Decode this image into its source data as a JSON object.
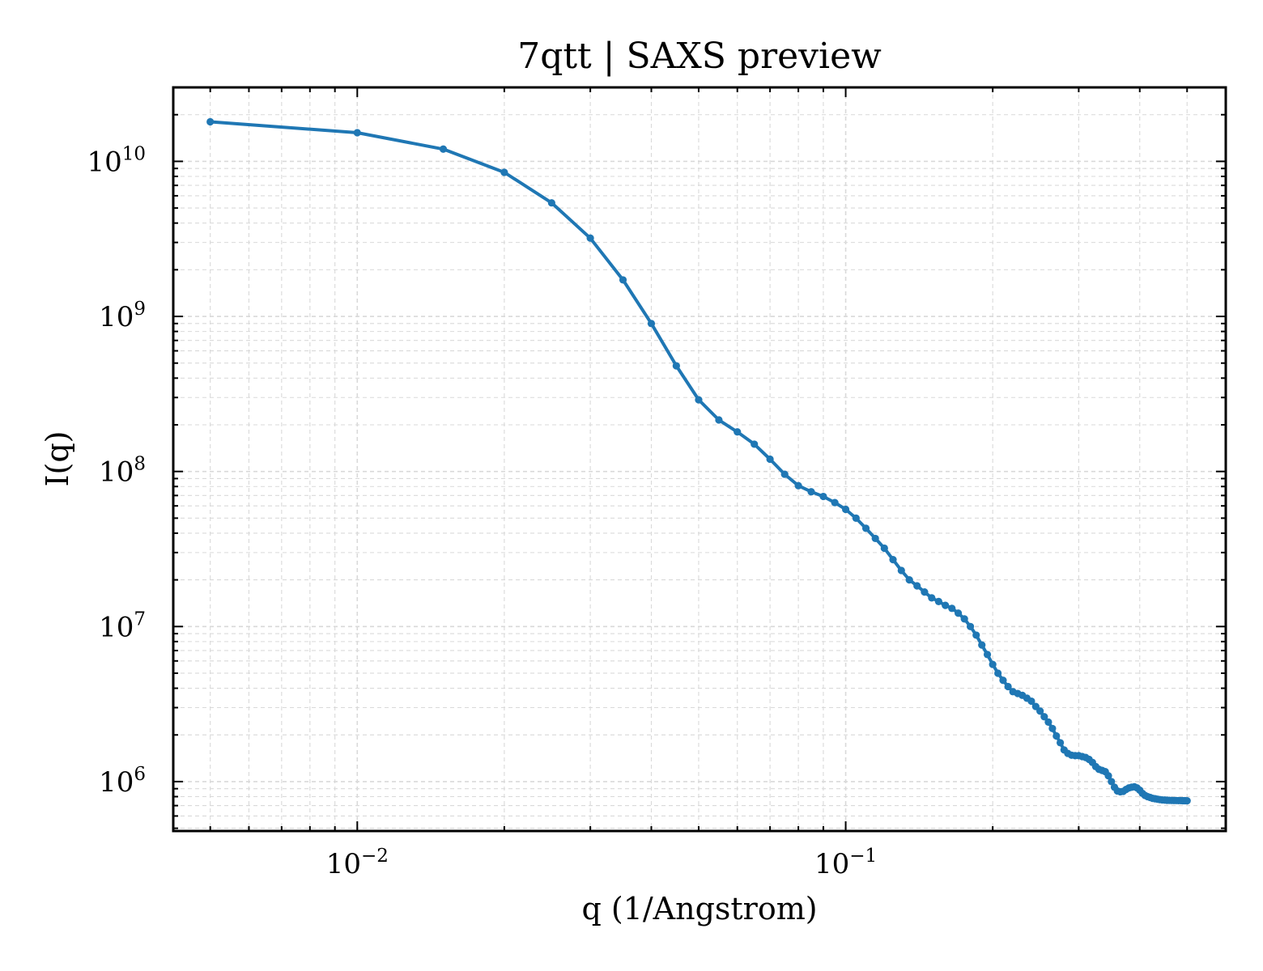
{
  "chart_data": {
    "type": "line",
    "title": "7qtt | SAXS preview",
    "xlabel": "q (1/Angstrom)",
    "ylabel": "I(q)",
    "xscale": "log",
    "yscale": "log",
    "xlim": [
      0.0042,
      0.6
    ],
    "ylim": [
      480000,
      30000000000
    ],
    "grid": true,
    "legend": "none",
    "colors": {
      "series": "#1f77b4",
      "grid": "#d9d9d9",
      "axes": "#000000"
    },
    "x_ticks": [
      {
        "base": "10",
        "exp": "−2",
        "value": 0.01
      },
      {
        "base": "10",
        "exp": "−1",
        "value": 0.1
      }
    ],
    "y_ticks": [
      {
        "base": "10",
        "exp": "6",
        "value": 1000000
      },
      {
        "base": "10",
        "exp": "7",
        "value": 10000000
      },
      {
        "base": "10",
        "exp": "8",
        "value": 100000000
      },
      {
        "base": "10",
        "exp": "9",
        "value": 1000000000
      },
      {
        "base": "10",
        "exp": "10",
        "value": 10000000000
      }
    ],
    "series": [
      {
        "x": [
          0.005,
          0.01,
          0.015,
          0.02,
          0.025,
          0.03,
          0.035,
          0.04,
          0.045,
          0.05,
          0.055,
          0.06,
          0.065,
          0.07,
          0.075,
          0.08,
          0.085,
          0.09,
          0.095,
          0.1,
          0.105,
          0.11,
          0.115,
          0.12,
          0.125,
          0.13,
          0.135,
          0.14,
          0.145,
          0.15,
          0.155,
          0.16,
          0.165,
          0.17,
          0.175,
          0.18,
          0.185,
          0.19,
          0.195,
          0.2,
          0.205,
          0.21,
          0.215,
          0.22,
          0.225,
          0.23,
          0.235,
          0.24,
          0.245,
          0.25,
          0.255,
          0.26,
          0.265,
          0.27,
          0.275,
          0.28,
          0.285,
          0.29,
          0.295,
          0.3,
          0.305,
          0.31,
          0.315,
          0.32,
          0.325,
          0.33,
          0.335,
          0.34,
          0.345,
          0.35,
          0.355,
          0.36,
          0.365,
          0.37,
          0.375,
          0.38,
          0.385,
          0.39,
          0.395,
          0.4,
          0.405,
          0.41,
          0.415,
          0.42,
          0.425,
          0.43,
          0.435,
          0.44,
          0.445,
          0.45,
          0.455,
          0.46,
          0.465,
          0.47,
          0.475,
          0.48,
          0.485,
          0.49,
          0.495,
          0.5
        ],
        "y": [
          18000000000,
          15300000000,
          12000000000,
          8500000000,
          5400000000,
          3200000000,
          1720000000,
          900000000,
          480000000,
          290000000,
          215000000,
          180000000,
          150000000,
          120000000,
          96000000,
          81000000,
          74000000,
          69000000,
          63000000,
          57000000,
          50000000,
          43000000,
          37000000,
          32000000,
          27000000,
          23000000,
          20000000,
          18300000,
          16700000,
          15300000,
          14500000,
          13700000,
          13100000,
          12200000,
          11200000,
          10000000,
          8800000,
          7600000,
          6600000,
          5700000,
          5000000,
          4500000,
          4100000,
          3800000,
          3700000,
          3600000,
          3450000,
          3300000,
          3050000,
          2850000,
          2620000,
          2420000,
          2200000,
          1970000,
          1780000,
          1600000,
          1520000,
          1480000,
          1470000,
          1470000,
          1450000,
          1430000,
          1390000,
          1330000,
          1250000,
          1200000,
          1180000,
          1160000,
          1090000,
          1000000,
          920000,
          870000,
          860000,
          865000,
          890000,
          910000,
          920000,
          925000,
          910000,
          880000,
          840000,
          815000,
          800000,
          790000,
          780000,
          775000,
          770000,
          765000,
          762000,
          760000,
          758000,
          757000,
          756000,
          755000,
          755000,
          754000,
          754000,
          753000,
          753000,
          752000
        ]
      }
    ]
  }
}
